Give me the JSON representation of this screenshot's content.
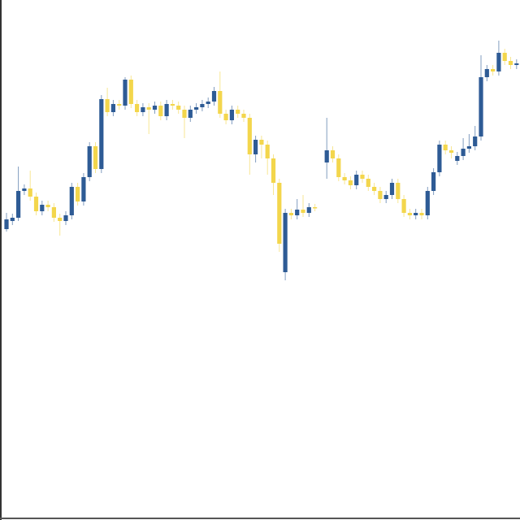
{
  "chart_data": {
    "type": "candlestick",
    "up_color": "#2e5b95",
    "down_color": "#f3d64c",
    "ylim": [
      0,
      640
    ],
    "open": [
      358,
      368,
      372,
      405,
      408,
      398,
      380,
      388,
      385,
      372,
      368,
      375,
      410,
      392,
      422,
      460,
      432,
      518,
      502,
      512,
      510,
      542,
      512,
      502,
      508,
      505,
      510,
      497,
      512,
      510,
      505,
      495,
      505,
      508,
      512,
      515,
      528,
      500,
      492,
      505,
      500,
      495,
      450,
      468,
      462,
      445,
      415,
      305,
      378,
      375,
      382,
      378,
      385,
      null,
      440,
      455,
      445,
      422,
      418,
      412,
      425,
      420,
      410,
      405,
      395,
      400,
      415,
      395,
      378,
      375,
      378,
      375,
      405,
      428,
      462,
      455,
      442,
      448,
      457,
      460,
      472,
      545,
      555,
      552,
      575,
      565,
      560
    ],
    "high": [
      378,
      377,
      435,
      413,
      430,
      403,
      393,
      393,
      390,
      377,
      380,
      415,
      415,
      427,
      465,
      465,
      523,
      532,
      517,
      517,
      545,
      547,
      517,
      513,
      513,
      515,
      515,
      517,
      517,
      515,
      510,
      510,
      513,
      517,
      520,
      533,
      552,
      505,
      510,
      510,
      505,
      500,
      473,
      473,
      467,
      450,
      420,
      383,
      383,
      395,
      400,
      390,
      389,
      null,
      495,
      460,
      450,
      427,
      423,
      430,
      430,
      425,
      415,
      410,
      405,
      420,
      420,
      400,
      383,
      383,
      383,
      410,
      433,
      467,
      467,
      460,
      453,
      470,
      475,
      485,
      572,
      560,
      560,
      590,
      580,
      570,
      567
    ],
    "low": [
      355,
      363,
      368,
      400,
      393,
      375,
      375,
      380,
      367,
      350,
      363,
      370,
      387,
      387,
      417,
      427,
      427,
      497,
      497,
      505,
      505,
      507,
      497,
      497,
      475,
      500,
      492,
      492,
      505,
      500,
      470,
      490,
      500,
      503,
      507,
      510,
      495,
      487,
      487,
      495,
      490,
      425,
      440,
      445,
      425,
      400,
      330,
      295,
      370,
      370,
      373,
      373,
      380,
      null,
      420,
      440,
      417,
      413,
      407,
      407,
      415,
      405,
      400,
      390,
      390,
      395,
      390,
      373,
      370,
      370,
      370,
      370,
      400,
      423,
      450,
      445,
      437,
      443,
      452,
      455,
      467,
      540,
      547,
      547,
      560,
      555,
      555
    ],
    "close": [
      370,
      372,
      405,
      408,
      398,
      380,
      388,
      385,
      372,
      368,
      375,
      410,
      392,
      422,
      460,
      432,
      518,
      502,
      512,
      510,
      542,
      512,
      502,
      508,
      505,
      510,
      497,
      512,
      510,
      505,
      495,
      505,
      508,
      512,
      515,
      528,
      500,
      492,
      505,
      500,
      495,
      450,
      468,
      462,
      445,
      415,
      340,
      378,
      375,
      382,
      378,
      385,
      384,
      null,
      455,
      445,
      422,
      418,
      412,
      425,
      420,
      410,
      405,
      395,
      400,
      415,
      395,
      378,
      375,
      378,
      375,
      405,
      428,
      462,
      455,
      452,
      448,
      457,
      460,
      472,
      545,
      555,
      552,
      575,
      565,
      560,
      562
    ]
  }
}
